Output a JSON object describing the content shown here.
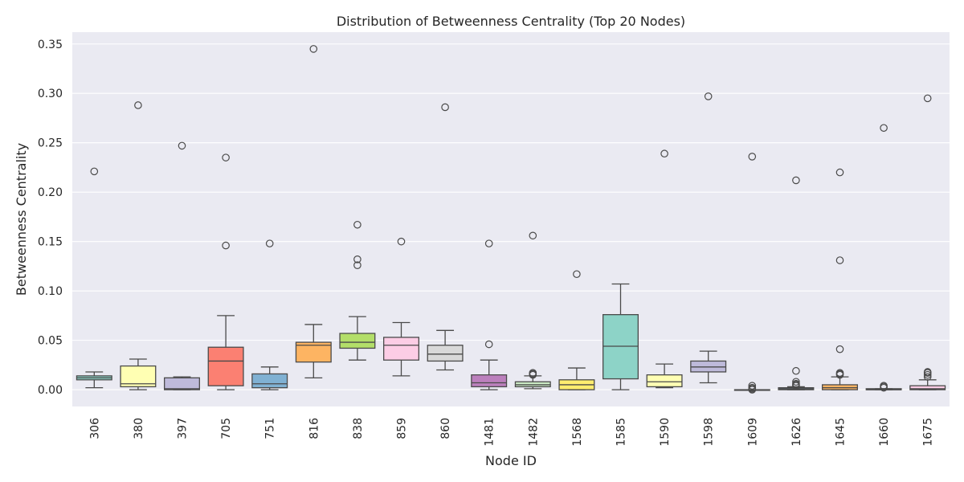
{
  "chart_data": {
    "type": "box",
    "title": "Distribution of Betweenness Centrality (Top 20 Nodes)",
    "xlabel": "Node ID",
    "ylabel": "Betweenness Centrality",
    "ylim": [
      -0.017,
      0.362
    ],
    "yticks": [
      "0.00",
      "0.05",
      "0.10",
      "0.15",
      "0.20",
      "0.25",
      "0.30",
      "0.35"
    ],
    "grid": true,
    "categories": [
      "306",
      "380",
      "397",
      "705",
      "751",
      "816",
      "838",
      "859",
      "860",
      "1481",
      "1482",
      "1568",
      "1585",
      "1590",
      "1598",
      "1609",
      "1626",
      "1645",
      "1660",
      "1675"
    ],
    "boxes": [
      {
        "node": "306",
        "color": "#8dd3c7",
        "whislo": 0.002,
        "q1": 0.01,
        "med": 0.012,
        "q3": 0.014,
        "whishi": 0.018,
        "fliers": [
          0.221
        ]
      },
      {
        "node": "380",
        "color": "#ffffb3",
        "whislo": 0.0,
        "q1": 0.003,
        "med": 0.006,
        "q3": 0.024,
        "whishi": 0.031,
        "fliers": [
          0.288
        ]
      },
      {
        "node": "397",
        "color": "#bebada",
        "whislo": 0.0,
        "q1": 0.0,
        "med": 0.001,
        "q3": 0.012,
        "whishi": 0.013,
        "fliers": [
          0.247
        ]
      },
      {
        "node": "705",
        "color": "#fb8072",
        "whislo": 0.0,
        "q1": 0.004,
        "med": 0.029,
        "q3": 0.043,
        "whishi": 0.075,
        "fliers": [
          0.146,
          0.235
        ]
      },
      {
        "node": "751",
        "color": "#80b1d3",
        "whislo": 0.0,
        "q1": 0.002,
        "med": 0.006,
        "q3": 0.016,
        "whishi": 0.023,
        "fliers": [
          0.148
        ]
      },
      {
        "node": "816",
        "color": "#fdb462",
        "whislo": 0.012,
        "q1": 0.028,
        "med": 0.045,
        "q3": 0.048,
        "whishi": 0.066,
        "fliers": [
          0.345
        ]
      },
      {
        "node": "838",
        "color": "#b3de69",
        "whislo": 0.03,
        "q1": 0.042,
        "med": 0.048,
        "q3": 0.057,
        "whishi": 0.074,
        "fliers": [
          0.126,
          0.132,
          0.167
        ]
      },
      {
        "node": "859",
        "color": "#fccde5",
        "whislo": 0.014,
        "q1": 0.03,
        "med": 0.045,
        "q3": 0.053,
        "whishi": 0.068,
        "fliers": [
          0.15
        ]
      },
      {
        "node": "860",
        "color": "#d9d9d9",
        "whislo": 0.02,
        "q1": 0.029,
        "med": 0.036,
        "q3": 0.045,
        "whishi": 0.06,
        "fliers": [
          0.286
        ]
      },
      {
        "node": "1481",
        "color": "#bc80bd",
        "whislo": 0.0,
        "q1": 0.003,
        "med": 0.007,
        "q3": 0.015,
        "whishi": 0.03,
        "fliers": [
          0.046,
          0.148
        ]
      },
      {
        "node": "1482",
        "color": "#ccebc5",
        "whislo": 0.001,
        "q1": 0.003,
        "med": 0.005,
        "q3": 0.008,
        "whishi": 0.014,
        "fliers": [
          0.015,
          0.016,
          0.017,
          0.156
        ]
      },
      {
        "node": "1568",
        "color": "#ffed6f",
        "whislo": 0.0,
        "q1": 0.0,
        "med": 0.005,
        "q3": 0.01,
        "whishi": 0.022,
        "fliers": [
          0.117
        ]
      },
      {
        "node": "1585",
        "color": "#8dd3c7",
        "whislo": 0.0,
        "q1": 0.011,
        "med": 0.044,
        "q3": 0.076,
        "whishi": 0.107,
        "fliers": []
      },
      {
        "node": "1590",
        "color": "#ffffb3",
        "whislo": 0.002,
        "q1": 0.003,
        "med": 0.008,
        "q3": 0.015,
        "whishi": 0.026,
        "fliers": [
          0.239
        ]
      },
      {
        "node": "1598",
        "color": "#bebada",
        "whislo": 0.007,
        "q1": 0.018,
        "med": 0.023,
        "q3": 0.029,
        "whishi": 0.039,
        "fliers": [
          0.297
        ]
      },
      {
        "node": "1609",
        "color": "#fb8072",
        "whislo": 0.0,
        "q1": 0.0,
        "med": 0.0,
        "q3": 0.0,
        "whishi": 0.0,
        "fliers": [
          0.0,
          0.001,
          0.002,
          0.004,
          0.236
        ]
      },
      {
        "node": "1626",
        "color": "#80b1d3",
        "whislo": 0.0,
        "q1": 0.0,
        "med": 0.001,
        "q3": 0.002,
        "whishi": 0.003,
        "fliers": [
          0.004,
          0.005,
          0.006,
          0.008,
          0.019,
          0.212
        ]
      },
      {
        "node": "1645",
        "color": "#fdb462",
        "whislo": 0.0,
        "q1": 0.0,
        "med": 0.002,
        "q3": 0.005,
        "whishi": 0.013,
        "fliers": [
          0.015,
          0.016,
          0.017,
          0.041,
          0.131,
          0.22
        ]
      },
      {
        "node": "1660",
        "color": "#b3de69",
        "whislo": 0.0,
        "q1": 0.0,
        "med": 0.0,
        "q3": 0.001,
        "whishi": 0.001,
        "fliers": [
          0.002,
          0.003,
          0.004,
          0.265
        ]
      },
      {
        "node": "1675",
        "color": "#fccde5",
        "whislo": 0.0,
        "q1": 0.0,
        "med": 0.001,
        "q3": 0.004,
        "whishi": 0.01,
        "fliers": [
          0.013,
          0.015,
          0.017,
          0.018,
          0.295
        ]
      }
    ]
  }
}
